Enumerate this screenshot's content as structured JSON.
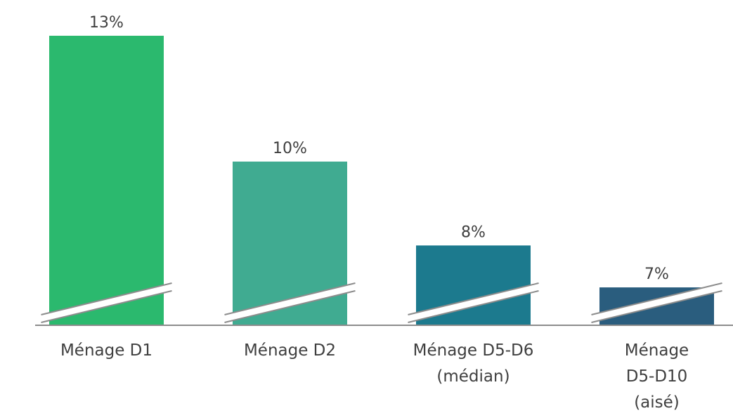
{
  "chart_data": {
    "type": "bar",
    "categories": [
      [
        "Ménage D1"
      ],
      [
        "Ménage D2"
      ],
      [
        "Ménage D5-D6",
        "(médian)"
      ],
      [
        "Ménage",
        "D5-D10",
        "(aisé)"
      ]
    ],
    "values": [
      13,
      10,
      8,
      7
    ],
    "value_labels": [
      "13%",
      "10%",
      "8%",
      "7%"
    ],
    "colors": [
      "#2bb96e",
      "#40ab91",
      "#1c7a8e",
      "#2a5d7e"
    ],
    "axis_break": true,
    "grid": false,
    "legend": "none",
    "title": "",
    "xlabel": "",
    "ylabel": ""
  }
}
